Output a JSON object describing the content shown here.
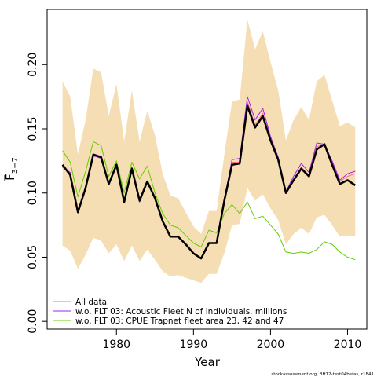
{
  "chart_data": {
    "type": "line",
    "xlabel": "Year",
    "ylabel_main": "F",
    "ylabel_sub": "3−7",
    "xlim": [
      1971,
      2012.5
    ],
    "ylim": [
      -0.006,
      0.243
    ],
    "x_ticks": [
      1980,
      1990,
      2000,
      2010
    ],
    "y_ticks": [
      0.0,
      0.05,
      0.1,
      0.15,
      0.2
    ],
    "y_tick_labels": [
      "0.00",
      "0.05",
      "0.10",
      "0.15",
      "0.20"
    ],
    "x": [
      1973,
      1974,
      1975,
      1976,
      1977,
      1978,
      1979,
      1980,
      1981,
      1982,
      1983,
      1984,
      1985,
      1986,
      1987,
      1988,
      1989,
      1990,
      1991,
      1992,
      1993,
      1994,
      1995,
      1996,
      1997,
      1998,
      1999,
      2000,
      2001,
      2002,
      2003,
      2004,
      2005,
      2006,
      2007,
      2008,
      2009,
      2010,
      2011
    ],
    "band_upper": [
      0.187,
      0.175,
      0.13,
      0.157,
      0.197,
      0.194,
      0.16,
      0.185,
      0.14,
      0.18,
      0.14,
      0.164,
      0.145,
      0.115,
      0.098,
      0.096,
      0.085,
      0.074,
      0.068,
      0.086,
      0.086,
      0.13,
      0.171,
      0.173,
      0.235,
      0.212,
      0.226,
      0.202,
      0.18,
      0.141,
      0.157,
      0.167,
      0.157,
      0.187,
      0.192,
      0.172,
      0.152,
      0.155,
      0.151
    ],
    "band_lower": [
      0.059,
      0.055,
      0.041,
      0.052,
      0.065,
      0.063,
      0.053,
      0.06,
      0.047,
      0.059,
      0.047,
      0.056,
      0.048,
      0.039,
      0.035,
      0.036,
      0.034,
      0.032,
      0.03,
      0.037,
      0.037,
      0.053,
      0.075,
      0.076,
      0.104,
      0.094,
      0.099,
      0.088,
      0.079,
      0.06,
      0.068,
      0.073,
      0.068,
      0.081,
      0.083,
      0.075,
      0.066,
      0.067,
      0.066
    ],
    "band_color": "#f5deb3",
    "main_series": {
      "color": "#000000",
      "values": [
        0.122,
        0.114,
        0.085,
        0.104,
        0.13,
        0.128,
        0.107,
        0.122,
        0.093,
        0.119,
        0.094,
        0.109,
        0.096,
        0.078,
        0.066,
        0.066,
        0.06,
        0.053,
        0.049,
        0.061,
        0.061,
        0.094,
        0.122,
        0.123,
        0.168,
        0.151,
        0.16,
        0.141,
        0.126,
        0.1,
        0.11,
        0.119,
        0.113,
        0.134,
        0.138,
        0.122,
        0.107,
        0.11,
        0.106
      ]
    },
    "series": [
      {
        "name": "All data",
        "color": "#ff6b8a",
        "values": [
          0.121,
          0.115,
          0.086,
          0.105,
          0.13,
          0.127,
          0.108,
          0.122,
          0.094,
          0.119,
          0.094,
          0.109,
          0.096,
          0.078,
          0.066,
          0.066,
          0.06,
          0.053,
          0.049,
          0.061,
          0.061,
          0.094,
          0.124,
          0.124,
          0.171,
          0.153,
          0.162,
          0.142,
          0.127,
          0.1,
          0.111,
          0.12,
          0.114,
          0.136,
          0.138,
          0.123,
          0.109,
          0.113,
          0.115
        ]
      },
      {
        "name": "w.o. FLT 03: Acoustic Fleet  N of individuals, millions",
        "color": "#a020f0",
        "values": [
          0.12,
          0.116,
          0.086,
          0.104,
          0.129,
          0.127,
          0.107,
          0.123,
          0.093,
          0.12,
          0.093,
          0.109,
          0.096,
          0.078,
          0.066,
          0.066,
          0.06,
          0.053,
          0.049,
          0.061,
          0.061,
          0.095,
          0.126,
          0.127,
          0.175,
          0.157,
          0.166,
          0.144,
          0.128,
          0.101,
          0.113,
          0.123,
          0.116,
          0.139,
          0.138,
          0.125,
          0.11,
          0.115,
          0.117
        ]
      },
      {
        "name": "w.o. FLT 03: CPUE Trapnet fleet area 23, 42 and 47",
        "color": "#66cc00",
        "values": [
          0.133,
          0.124,
          0.097,
          0.117,
          0.14,
          0.137,
          0.113,
          0.125,
          0.1,
          0.124,
          0.111,
          0.121,
          0.1,
          0.084,
          0.075,
          0.073,
          0.067,
          0.061,
          0.058,
          0.071,
          0.069,
          0.084,
          0.091,
          0.084,
          0.093,
          0.08,
          0.082,
          0.075,
          0.068,
          0.054,
          0.053,
          0.054,
          0.053,
          0.056,
          0.062,
          0.06,
          0.054,
          0.05,
          0.048
        ]
      }
    ],
    "legend_position": "bottom-left"
  },
  "footer": "stockassessment.org, BH12-test04befas, r1841"
}
